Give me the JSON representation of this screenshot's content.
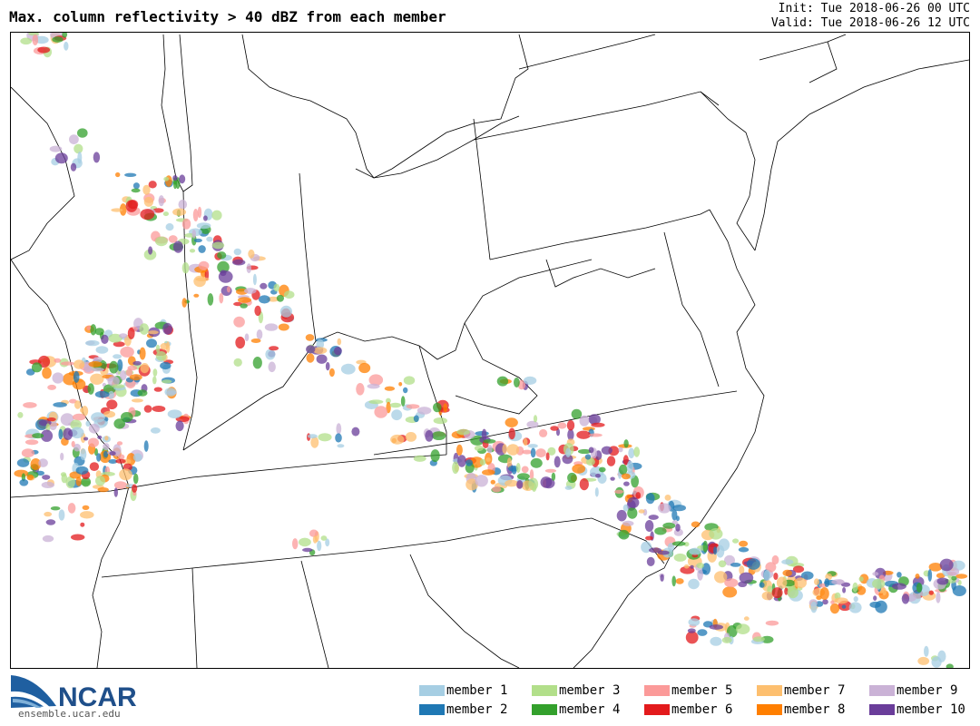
{
  "header": {
    "title": "Max. column reflectivity > 40 dBZ from each member",
    "init": "Init: Tue 2018-06-26 00 UTC",
    "valid": "Valid: Tue 2018-06-26 12 UTC"
  },
  "logo": {
    "text": "NCAR",
    "url": "ensemble.ucar.edu"
  },
  "legend": {
    "items": [
      {
        "label": "member 1",
        "color": "#a6cee3"
      },
      {
        "label": "member 2",
        "color": "#1f78b4"
      },
      {
        "label": "member 3",
        "color": "#b2df8a"
      },
      {
        "label": "member 4",
        "color": "#33a02c"
      },
      {
        "label": "member 5",
        "color": "#fb9a99"
      },
      {
        "label": "member 6",
        "color": "#e31a1c"
      },
      {
        "label": "member 7",
        "color": "#fdbf6f"
      },
      {
        "label": "member 8",
        "color": "#ff7f00"
      },
      {
        "label": "member 9",
        "color": "#cab2d6"
      },
      {
        "label": "member 10",
        "color": "#6a3d9a"
      }
    ]
  }
}
